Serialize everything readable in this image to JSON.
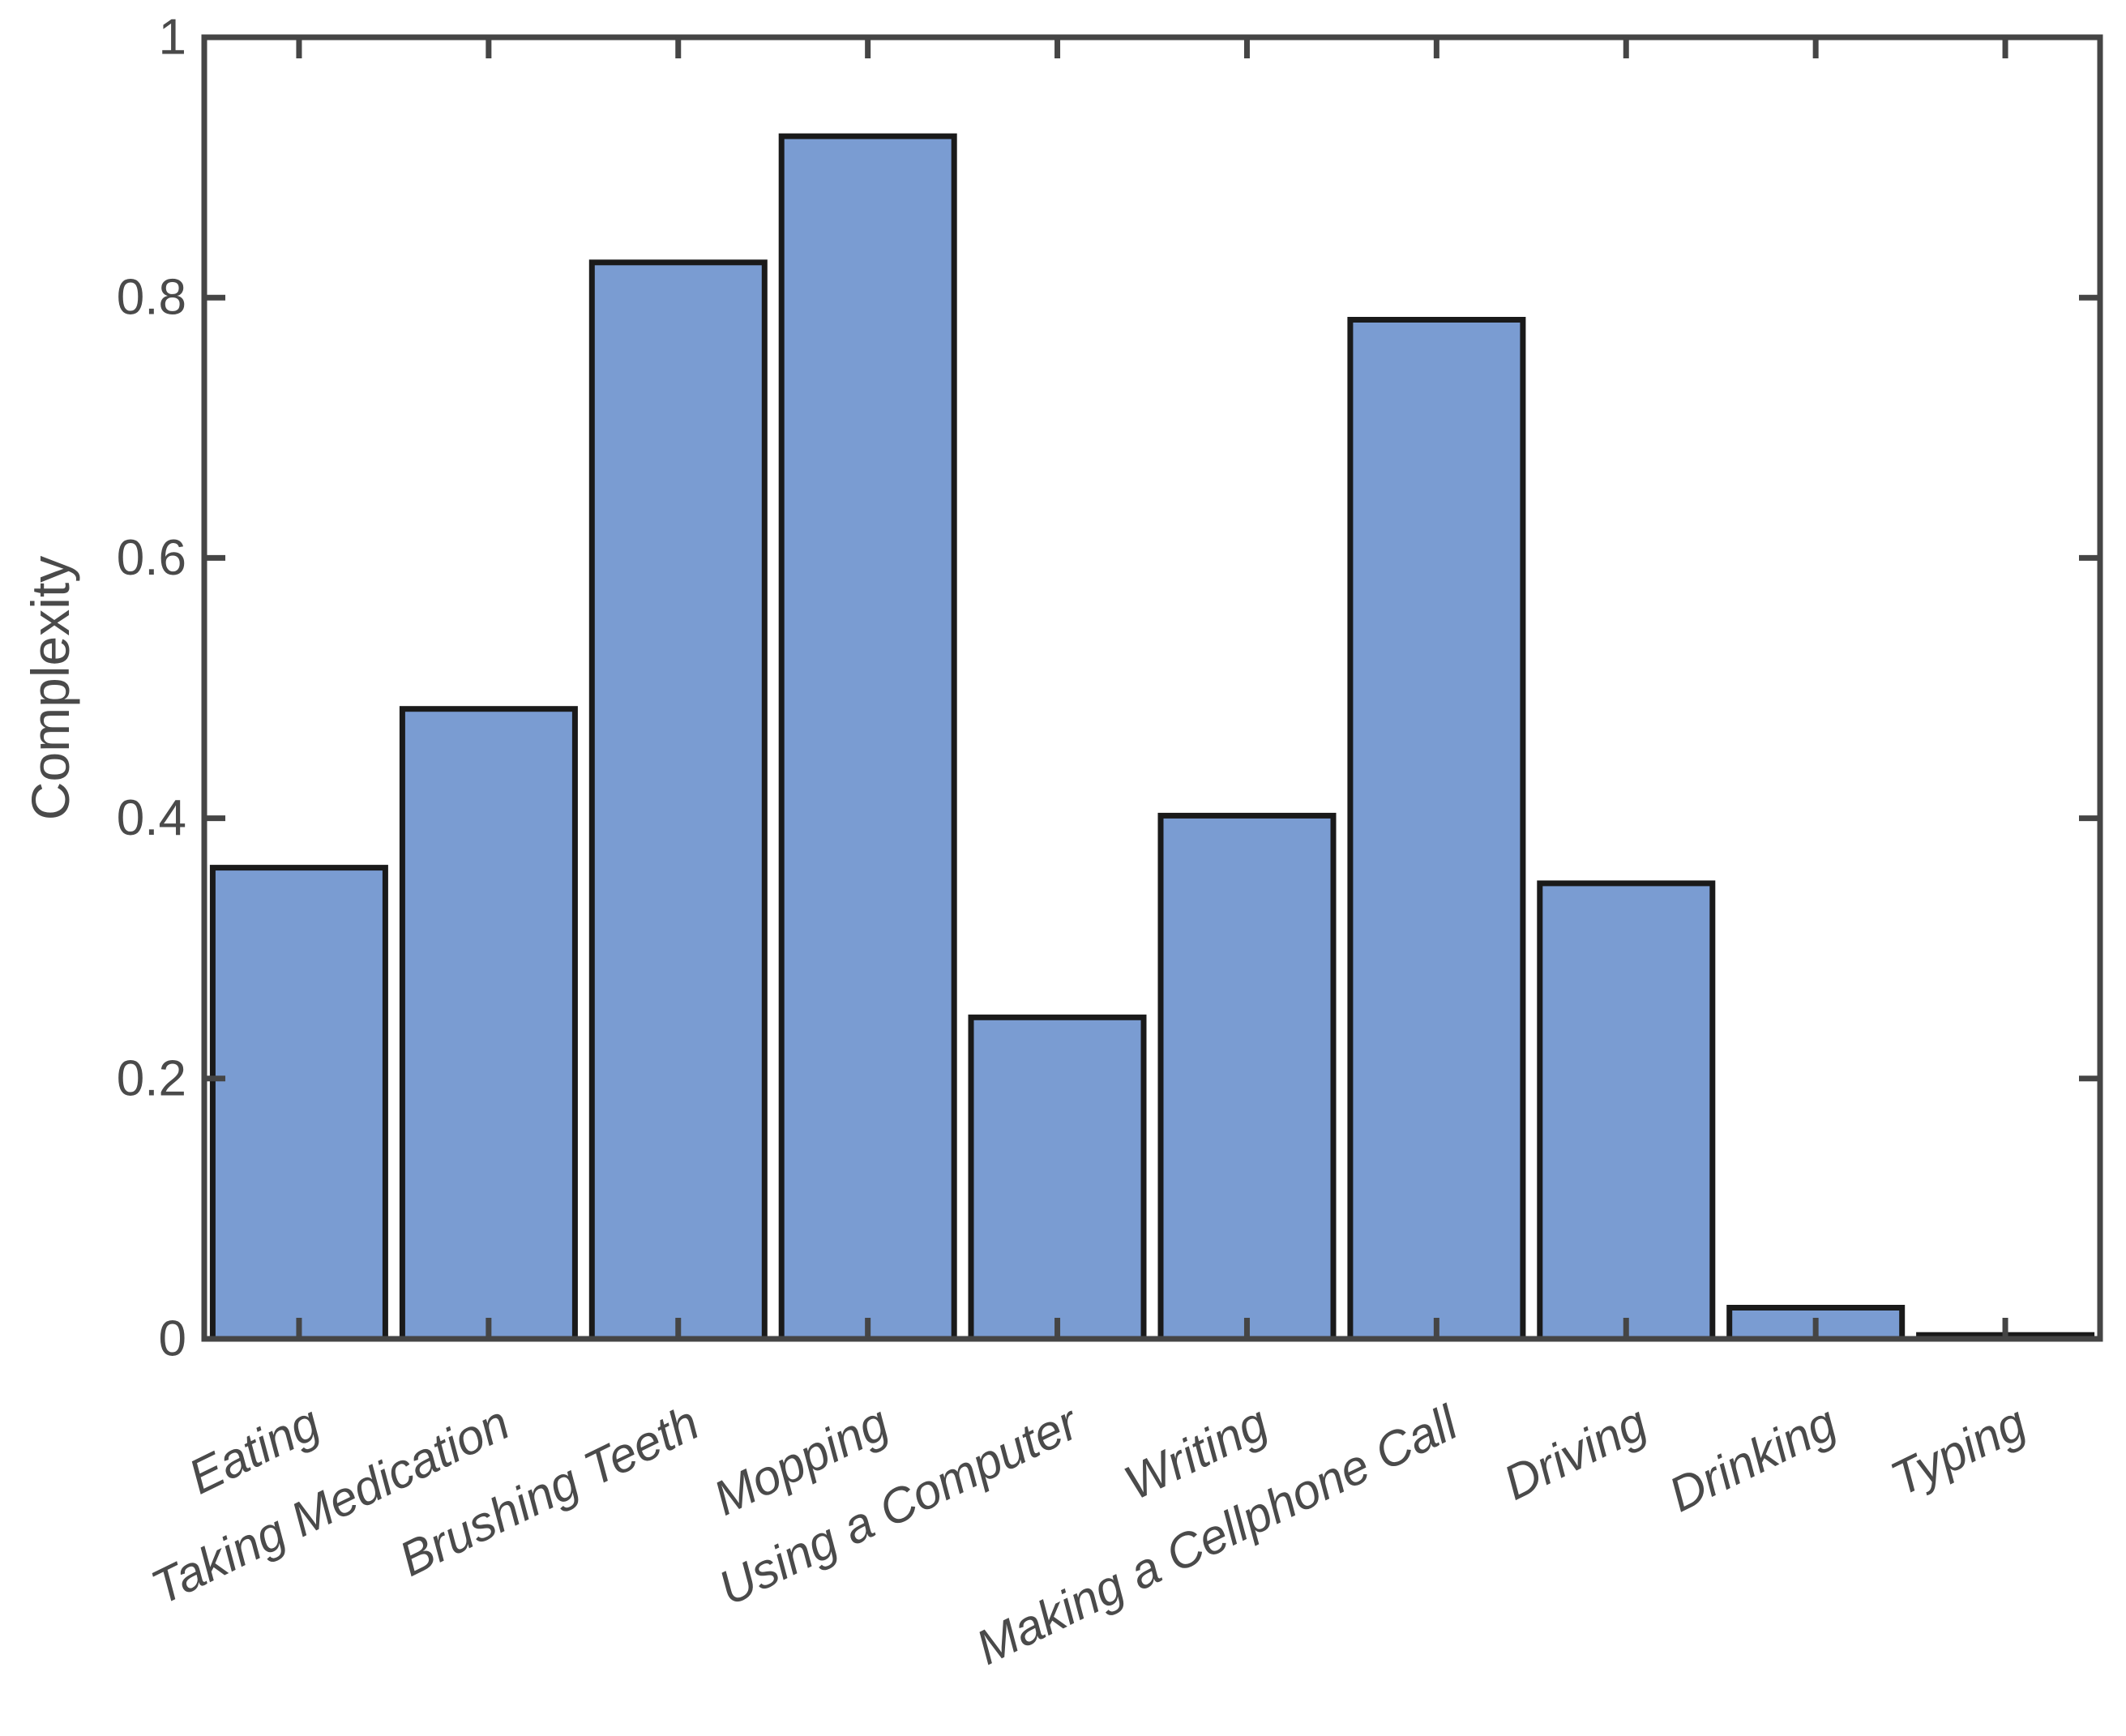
{
  "chart_data": {
    "type": "bar",
    "categories": [
      "Eating",
      "Taking Medication",
      "Brushing Teeth",
      "Mopping",
      "Using a Computer",
      "Writing",
      "Making a Cellphone Call",
      "Driving",
      "Drinking",
      "Typing"
    ],
    "values": [
      0.362,
      0.484,
      0.827,
      0.924,
      0.247,
      0.402,
      0.783,
      0.35,
      0.024,
      0.003
    ],
    "title": "",
    "xlabel": "",
    "ylabel": "Complexity",
    "ylim": [
      0,
      1
    ],
    "yticks": [
      0,
      0.2,
      0.4,
      0.6,
      0.8,
      1
    ],
    "ytick_labels": [
      "0",
      "0.2",
      "0.4",
      "0.6",
      "0.8",
      "1"
    ],
    "grid": "off",
    "legend": "none",
    "box": true,
    "tick_direction": "in",
    "x_tick_label_rotation_deg": 26,
    "x_tick_label_style": "italic",
    "bar_fill_color": "#7a9cd2",
    "bar_edge_color": "#1a1a1a",
    "axis_color": "#454545",
    "tick_label_color": "#4a4a4a"
  }
}
